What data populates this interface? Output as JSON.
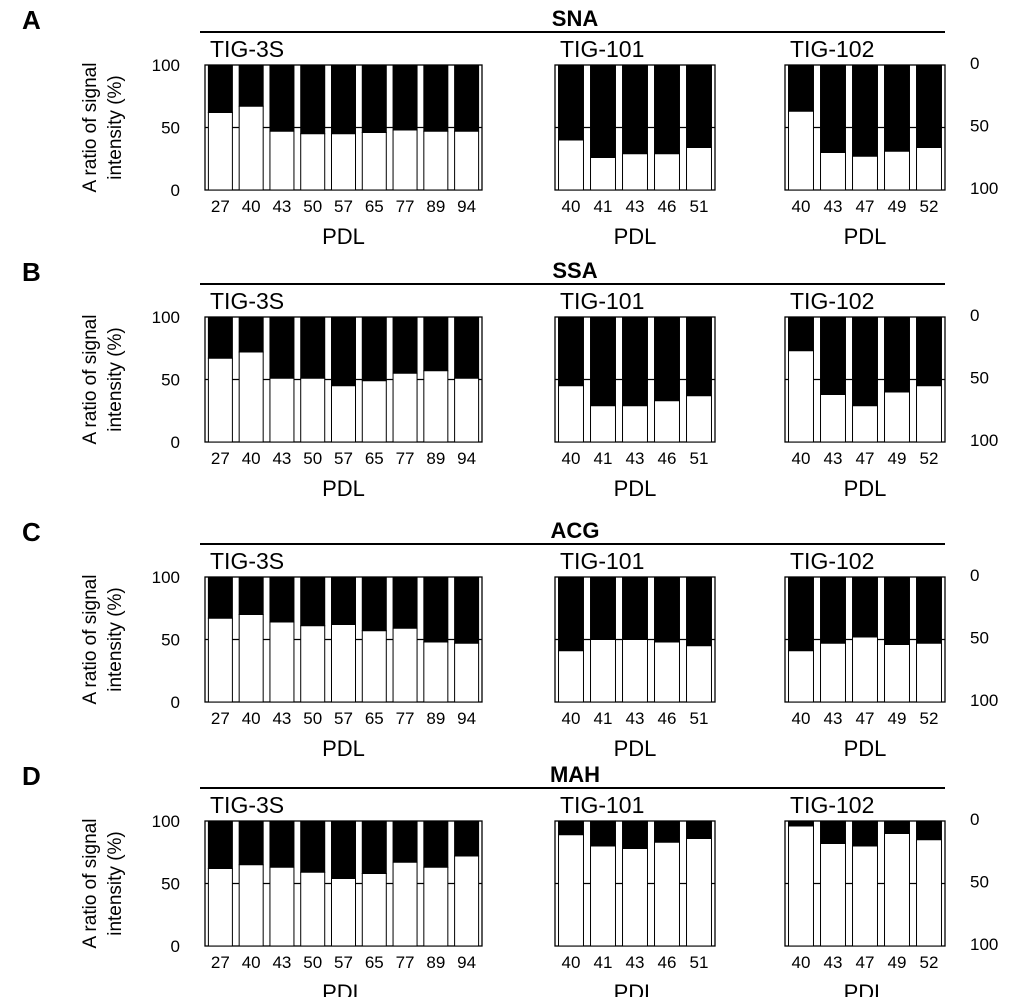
{
  "figure": {
    "ylabel_line1": "A ratio of signal",
    "ylabel_line2": "intensity (%)",
    "left_axis_ticks": [
      "100",
      "50",
      "0"
    ],
    "right_axis_ticks": [
      "0",
      "50",
      "100"
    ],
    "xlabel": "PDL",
    "colors": {
      "upper_fill": "#000000",
      "lower_fill": "#ffffff",
      "stroke": "#000000"
    }
  },
  "chart_data": [
    {
      "type": "bar",
      "stacked": true,
      "panel": "A",
      "title": "SNA",
      "ylim": [
        0,
        100
      ],
      "groups": [
        {
          "name": "TIG-3S",
          "categories": [
            "27",
            "40",
            "43",
            "50",
            "57",
            "65",
            "77",
            "89",
            "94"
          ],
          "white_values": [
            62,
            67,
            47,
            45,
            45,
            46,
            48,
            47,
            47
          ]
        },
        {
          "name": "TIG-101",
          "categories": [
            "40",
            "41",
            "43",
            "46",
            "51"
          ],
          "white_values": [
            40,
            26,
            29,
            29,
            34
          ]
        },
        {
          "name": "TIG-102",
          "categories": [
            "40",
            "43",
            "47",
            "49",
            "52"
          ],
          "white_values": [
            63,
            30,
            27,
            31,
            34
          ]
        }
      ]
    },
    {
      "type": "bar",
      "stacked": true,
      "panel": "B",
      "title": "SSA",
      "ylim": [
        0,
        100
      ],
      "groups": [
        {
          "name": "TIG-3S",
          "categories": [
            "27",
            "40",
            "43",
            "50",
            "57",
            "65",
            "77",
            "89",
            "94"
          ],
          "white_values": [
            67,
            72,
            51,
            51,
            45,
            49,
            55,
            57,
            51
          ]
        },
        {
          "name": "TIG-101",
          "categories": [
            "40",
            "41",
            "43",
            "46",
            "51"
          ],
          "white_values": [
            45,
            29,
            29,
            33,
            37
          ]
        },
        {
          "name": "TIG-102",
          "categories": [
            "40",
            "43",
            "47",
            "49",
            "52"
          ],
          "white_values": [
            73,
            38,
            29,
            40,
            45
          ]
        }
      ]
    },
    {
      "type": "bar",
      "stacked": true,
      "panel": "C",
      "title": "ACG",
      "ylim": [
        0,
        100
      ],
      "groups": [
        {
          "name": "TIG-3S",
          "categories": [
            "27",
            "40",
            "43",
            "50",
            "57",
            "65",
            "77",
            "89",
            "94"
          ],
          "white_values": [
            67,
            70,
            64,
            61,
            62,
            57,
            59,
            48,
            47
          ]
        },
        {
          "name": "TIG-101",
          "categories": [
            "40",
            "41",
            "43",
            "46",
            "51"
          ],
          "white_values": [
            41,
            50,
            50,
            48,
            45
          ]
        },
        {
          "name": "TIG-102",
          "categories": [
            "40",
            "43",
            "47",
            "49",
            "52"
          ],
          "white_values": [
            41,
            47,
            52,
            46,
            47
          ]
        }
      ]
    },
    {
      "type": "bar",
      "stacked": true,
      "panel": "D",
      "title": "MAH",
      "ylim": [
        0,
        100
      ],
      "groups": [
        {
          "name": "TIG-3S",
          "categories": [
            "27",
            "40",
            "43",
            "50",
            "57",
            "65",
            "77",
            "89",
            "94"
          ],
          "white_values": [
            62,
            65,
            63,
            59,
            54,
            58,
            67,
            63,
            72
          ]
        },
        {
          "name": "TIG-101",
          "categories": [
            "40",
            "41",
            "43",
            "46",
            "51"
          ],
          "white_values": [
            89,
            80,
            78,
            83,
            86
          ]
        },
        {
          "name": "TIG-102",
          "categories": [
            "40",
            "43",
            "47",
            "49",
            "52"
          ],
          "white_values": [
            96,
            82,
            80,
            90,
            85
          ]
        }
      ]
    }
  ]
}
